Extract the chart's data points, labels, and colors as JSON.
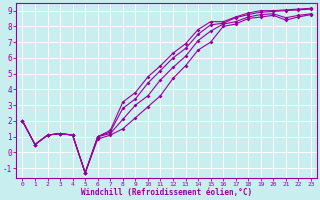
{
  "xlabel": "Windchill (Refroidissement éolien,°C)",
  "background_color": "#c8eef0",
  "line_color": "#990099",
  "grid_color": "#ffffff",
  "xlim": [
    -0.5,
    23.5
  ],
  "ylim": [
    -1.6,
    9.5
  ],
  "xticks": [
    0,
    1,
    2,
    3,
    4,
    5,
    6,
    7,
    8,
    9,
    10,
    11,
    12,
    13,
    14,
    15,
    16,
    17,
    18,
    19,
    20,
    21,
    22,
    23
  ],
  "yticks": [
    -1,
    0,
    1,
    2,
    3,
    4,
    5,
    6,
    7,
    8,
    9
  ],
  "lines": [
    {
      "x": [
        0,
        1,
        2,
        3,
        4,
        5,
        6,
        7,
        8,
        9,
        10,
        11,
        12,
        13,
        14,
        15,
        16,
        17,
        18,
        19,
        20,
        21,
        22,
        23
      ],
      "y": [
        2.0,
        0.5,
        1.1,
        1.2,
        1.1,
        -1.3,
        1.0,
        1.4,
        3.2,
        3.8,
        4.8,
        5.5,
        6.3,
        6.9,
        7.8,
        8.3,
        8.3,
        8.6,
        8.85,
        9.0,
        9.0,
        9.05,
        9.1,
        9.15
      ]
    },
    {
      "x": [
        0,
        1,
        2,
        3,
        4,
        5,
        6,
        7,
        8,
        9,
        10,
        11,
        12,
        13,
        14,
        15,
        16,
        17,
        18,
        19,
        20,
        21,
        22,
        23
      ],
      "y": [
        2.0,
        0.5,
        1.1,
        1.2,
        1.1,
        -1.3,
        1.0,
        1.3,
        2.8,
        3.4,
        4.4,
        5.2,
        6.0,
        6.6,
        7.5,
        8.1,
        8.2,
        8.55,
        8.75,
        8.9,
        8.95,
        9.0,
        9.05,
        9.1
      ]
    },
    {
      "x": [
        0,
        1,
        2,
        3,
        4,
        5,
        6,
        7,
        8,
        9,
        10,
        11,
        12,
        13,
        14,
        15,
        16,
        17,
        18,
        19,
        20,
        21,
        22,
        23
      ],
      "y": [
        2.0,
        0.5,
        1.1,
        1.2,
        1.1,
        -1.3,
        1.0,
        1.2,
        2.1,
        3.0,
        3.6,
        4.6,
        5.4,
        6.1,
        7.1,
        7.7,
        8.15,
        8.3,
        8.6,
        8.75,
        8.8,
        8.55,
        8.7,
        8.8
      ]
    },
    {
      "x": [
        0,
        1,
        2,
        3,
        4,
        5,
        6,
        7,
        8,
        9,
        10,
        11,
        12,
        13,
        14,
        15,
        16,
        17,
        18,
        19,
        20,
        21,
        22,
        23
      ],
      "y": [
        2.0,
        0.5,
        1.1,
        1.2,
        1.1,
        -1.3,
        0.85,
        1.1,
        1.5,
        2.2,
        2.9,
        3.6,
        4.7,
        5.5,
        6.5,
        7.0,
        8.0,
        8.15,
        8.5,
        8.6,
        8.7,
        8.4,
        8.6,
        8.75
      ]
    }
  ]
}
